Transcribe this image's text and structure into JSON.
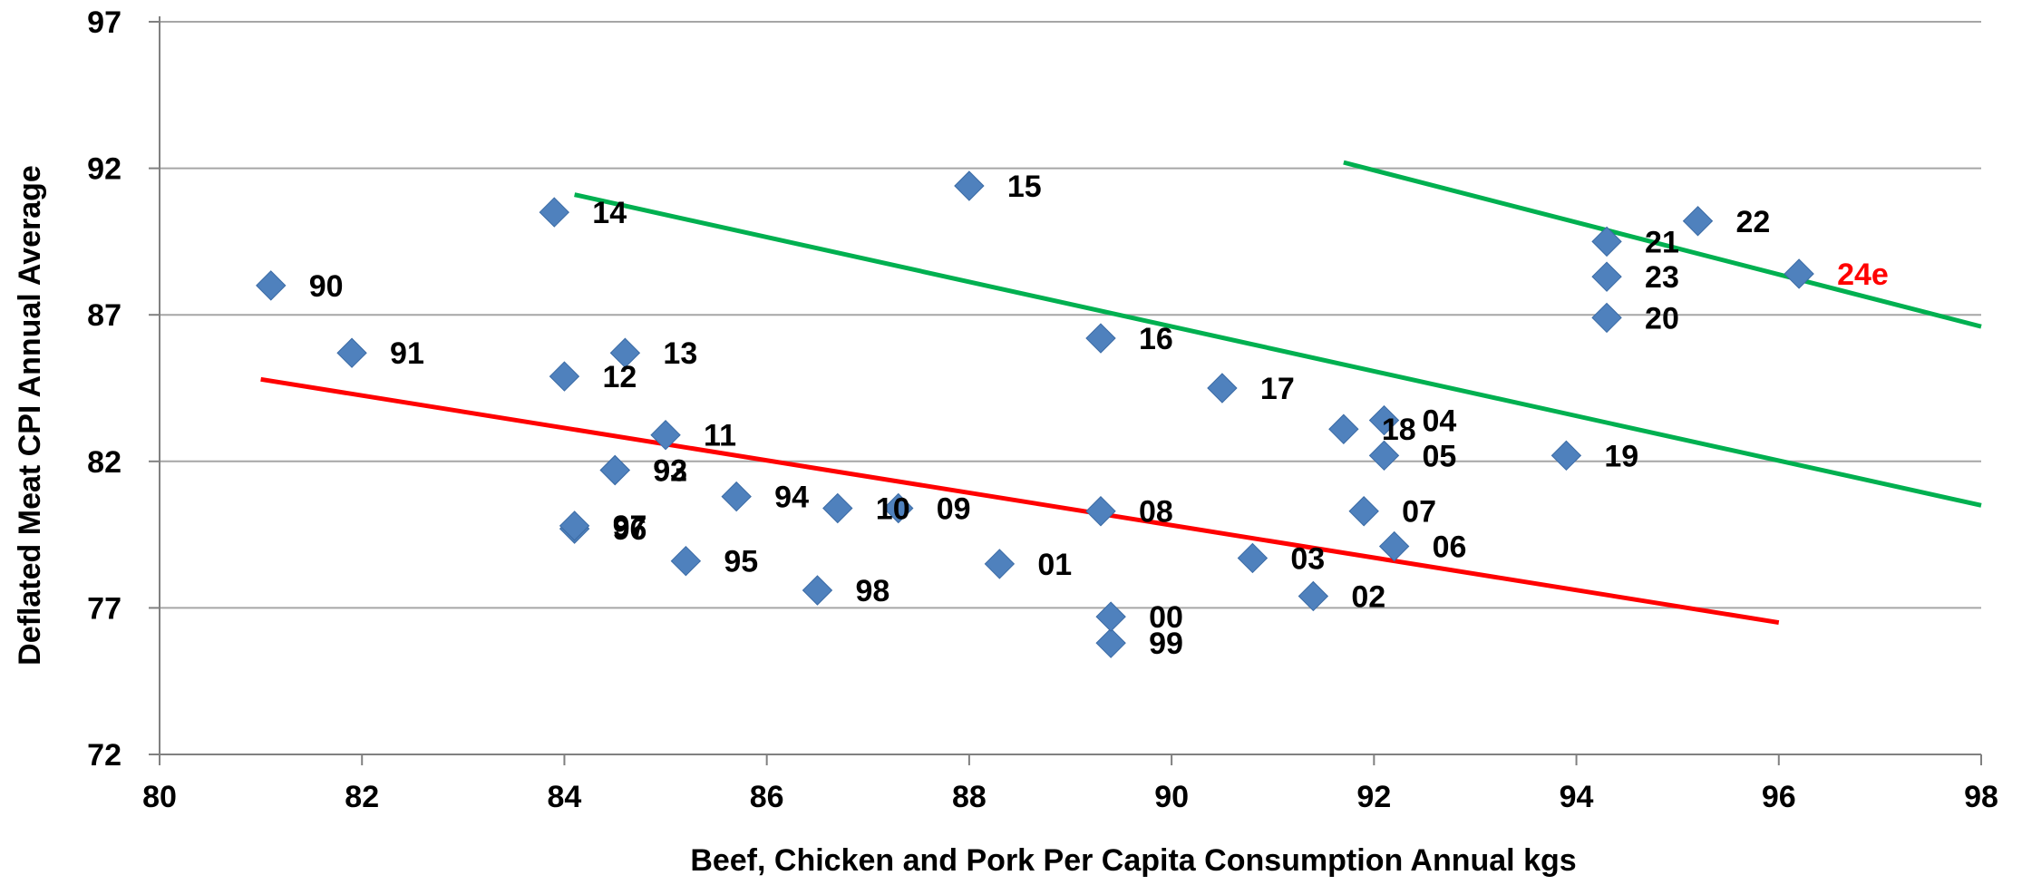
{
  "chart_data": {
    "type": "scatter",
    "title": "",
    "xlabel": "Beef, Chicken and Pork Per Capita Consumption Annual kgs",
    "ylabel": "Deflated Meat CPI Annual Average",
    "xlim": [
      80,
      98
    ],
    "ylim": [
      72,
      97
    ],
    "xticks": [
      80,
      82,
      84,
      86,
      88,
      90,
      92,
      94,
      96,
      98
    ],
    "yticks": [
      72,
      77,
      82,
      87,
      92,
      97
    ],
    "grid": "horizontal",
    "legend": "none",
    "marker_color": "#4F81BD",
    "points": [
      {
        "label": "90",
        "x": 81.1,
        "y": 88.0
      },
      {
        "label": "91",
        "x": 81.9,
        "y": 85.7
      },
      {
        "label": "92",
        "x": 84.5,
        "y": 81.7
      },
      {
        "label": "93",
        "x": 84.5,
        "y": 81.7
      },
      {
        "label": "94",
        "x": 85.7,
        "y": 80.8
      },
      {
        "label": "95",
        "x": 85.2,
        "y": 78.6
      },
      {
        "label": "96",
        "x": 84.1,
        "y": 79.7
      },
      {
        "label": "97",
        "x": 84.1,
        "y": 79.8
      },
      {
        "label": "98",
        "x": 86.5,
        "y": 77.6
      },
      {
        "label": "99",
        "x": 89.4,
        "y": 75.8
      },
      {
        "label": "00",
        "x": 89.4,
        "y": 76.7
      },
      {
        "label": "01",
        "x": 88.3,
        "y": 78.5
      },
      {
        "label": "02",
        "x": 91.4,
        "y": 77.4
      },
      {
        "label": "03",
        "x": 90.8,
        "y": 78.7
      },
      {
        "label": "04",
        "x": 92.1,
        "y": 83.4
      },
      {
        "label": "05",
        "x": 92.1,
        "y": 82.2
      },
      {
        "label": "06",
        "x": 92.2,
        "y": 79.1
      },
      {
        "label": "07",
        "x": 91.9,
        "y": 80.3
      },
      {
        "label": "08",
        "x": 89.3,
        "y": 80.3
      },
      {
        "label": "09",
        "x": 87.3,
        "y": 80.4
      },
      {
        "label": "10",
        "x": 86.7,
        "y": 80.4
      },
      {
        "label": "11",
        "x": 85.0,
        "y": 82.9
      },
      {
        "label": "12",
        "x": 84.0,
        "y": 84.9
      },
      {
        "label": "13",
        "x": 84.6,
        "y": 85.7
      },
      {
        "label": "14",
        "x": 83.9,
        "y": 90.5
      },
      {
        "label": "15",
        "x": 88.0,
        "y": 91.4
      },
      {
        "label": "16",
        "x": 89.3,
        "y": 86.2
      },
      {
        "label": "17",
        "x": 90.5,
        "y": 84.5
      },
      {
        "label": "18",
        "x": 91.7,
        "y": 83.1
      },
      {
        "label": "19",
        "x": 93.9,
        "y": 82.2
      },
      {
        "label": "20",
        "x": 94.3,
        "y": 86.9
      },
      {
        "label": "21",
        "x": 94.3,
        "y": 89.5
      },
      {
        "label": "22",
        "x": 95.2,
        "y": 90.2
      },
      {
        "label": "23",
        "x": 94.3,
        "y": 88.3
      },
      {
        "label": "24e",
        "x": 96.2,
        "y": 88.4,
        "highlight": true
      }
    ],
    "lines": [
      {
        "color": "#FF0000",
        "x": [
          81.0,
          96.0
        ],
        "y": [
          84.8,
          76.5
        ]
      },
      {
        "color": "#00B050",
        "x": [
          84.1,
          98.0
        ],
        "y": [
          91.1,
          80.5
        ]
      },
      {
        "color": "#00B050",
        "x": [
          91.7,
          98.0
        ],
        "y": [
          92.2,
          86.6
        ]
      }
    ],
    "highlight_color": "#FF0000",
    "gridline_color": "#A6A6A6",
    "axis_color": "#808080"
  }
}
